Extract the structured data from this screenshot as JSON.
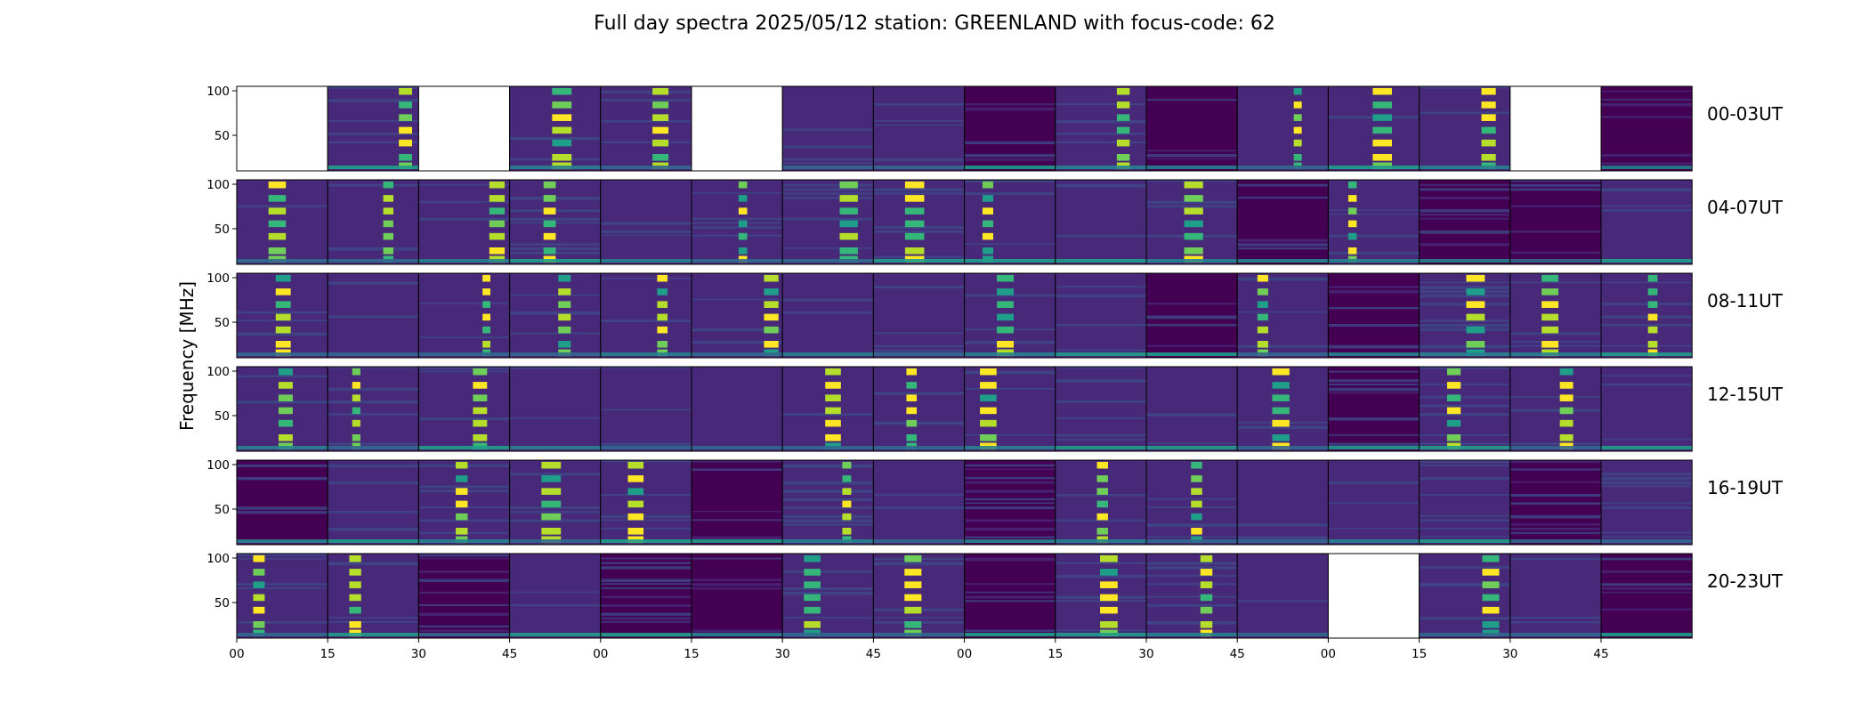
{
  "figure": {
    "title": "Full day spectra 2025/05/12 station: GREENLAND with focus-code: 62",
    "ylabel": "Frequency [MHz]"
  },
  "chart_data": {
    "type": "heatmap",
    "title": "Full day spectra 2025/05/12 station: GREENLAND with focus-code: 62",
    "ylabel": "Frequency [MHz]",
    "xlabel": "",
    "colormap": "viridis",
    "colormap_colors": [
      "#440154",
      "#482878",
      "#3e4989",
      "#31688e",
      "#26828e",
      "#1f9e89",
      "#35b779",
      "#6ece58",
      "#b5de2b",
      "#fde725"
    ],
    "yticks": [
      50,
      100
    ],
    "ylim": [
      10,
      105
    ],
    "xticks": [
      "00",
      "15",
      "30",
      "45",
      "00",
      "15",
      "30",
      "45",
      "00",
      "15",
      "30",
      "45",
      "00",
      "15",
      "30",
      "45"
    ],
    "rows": [
      {
        "label": "00-03UT",
        "panels": [
          "missing",
          "sig",
          "missing",
          "sig",
          "sig",
          "missing",
          "sig",
          "sig",
          "sig",
          "sig",
          "sig",
          "sig",
          "sig",
          "sig",
          "missing",
          "sig"
        ]
      },
      {
        "label": "04-07UT",
        "panels": [
          "sig",
          "sig",
          "sig",
          "sig",
          "sig",
          "sig",
          "sig",
          "sig",
          "sig",
          "sig",
          "sig",
          "sig",
          "sig",
          "sig",
          "sig",
          "sig"
        ]
      },
      {
        "label": "08-11UT",
        "panels": [
          "sig",
          "sig",
          "sig",
          "sig",
          "sig",
          "sig",
          "sig",
          "sig",
          "sig",
          "sig",
          "sig",
          "sig",
          "sig",
          "sig",
          "sig",
          "sig"
        ]
      },
      {
        "label": "12-15UT",
        "panels": [
          "sig",
          "sig",
          "sig",
          "sig",
          "sig",
          "sig",
          "sig",
          "sig",
          "sig",
          "sig",
          "sig",
          "sig",
          "sig",
          "sig",
          "sig",
          "sig"
        ]
      },
      {
        "label": "16-19UT",
        "panels": [
          "sig",
          "sig",
          "sig",
          "sig",
          "sig",
          "sig",
          "sig",
          "sig",
          "sig",
          "sig",
          "sig",
          "sig",
          "sig",
          "sig",
          "sig",
          "sig"
        ]
      },
      {
        "label": "20-23UT",
        "panels": [
          "sig",
          "sig",
          "sig",
          "sig",
          "sig",
          "sig",
          "sig",
          "sig",
          "sig",
          "sig",
          "sig",
          "sig",
          "missing",
          "sig",
          "sig",
          "sig"
        ]
      }
    ]
  }
}
